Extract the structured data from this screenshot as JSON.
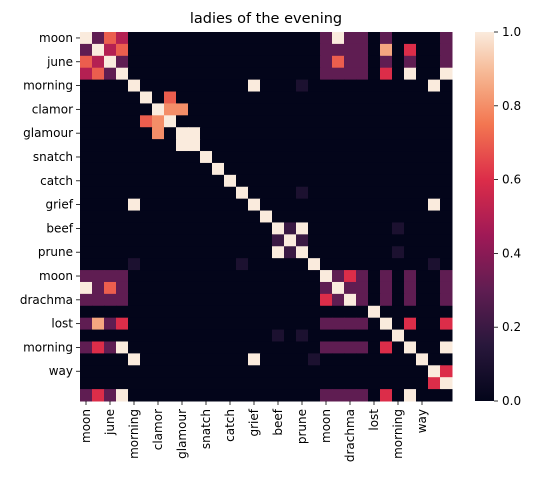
{
  "chart_data": {
    "type": "heatmap",
    "title": "ladies of the evening",
    "row_tick_labels": [
      "moon",
      "june",
      "morning",
      "clamor",
      "glamour",
      "snatch",
      "catch",
      "grief",
      "beef",
      "prune",
      "moon",
      "drachma",
      "lost",
      "morning",
      "way"
    ],
    "col_tick_labels": [
      "moon",
      "june",
      "morning",
      "clamor",
      "glamour",
      "snatch",
      "catch",
      "grief",
      "beef",
      "prune",
      "moon",
      "drachma",
      "lost",
      "morning",
      "way"
    ],
    "colorbar_ticks": [
      "0.0",
      "0.2",
      "0.4",
      "0.6",
      "0.8",
      "1.0"
    ],
    "vmin": 0,
    "vmax": 1,
    "colormap": "rocket",
    "matrix": [
      [
        1.0,
        0.3,
        0.7,
        0.5,
        0,
        0,
        0,
        0,
        0,
        0,
        0,
        0,
        0,
        0,
        0,
        0,
        0,
        0,
        0,
        0,
        0.3,
        1.0,
        0.3,
        0.3,
        0,
        0.3,
        0,
        0,
        0,
        0,
        0.3,
        0
      ],
      [
        0.3,
        1.0,
        0.5,
        0.7,
        0,
        0,
        0,
        0,
        0,
        0,
        0,
        0,
        0,
        0,
        0,
        0,
        0,
        0,
        0,
        0,
        0.3,
        0.3,
        0.3,
        0.3,
        0,
        0.85,
        0,
        0.6,
        0,
        0,
        0.3,
        0
      ],
      [
        0.7,
        0.5,
        1.0,
        0.3,
        0,
        0,
        0,
        0,
        0,
        0,
        0,
        0,
        0,
        0,
        0,
        0,
        0,
        0,
        0,
        0,
        0.3,
        0.7,
        0.3,
        0.3,
        0,
        0.3,
        0,
        0.3,
        0,
        0,
        0.3,
        0
      ],
      [
        0.5,
        0.7,
        0.3,
        1.0,
        0,
        0,
        0,
        0,
        0,
        0,
        0,
        0,
        0,
        0,
        0,
        0,
        0,
        0,
        0,
        0,
        0.3,
        0.3,
        0.3,
        0.3,
        0,
        0.6,
        0,
        1.0,
        0,
        0,
        1.0,
        0
      ],
      [
        0,
        0,
        0,
        0,
        1.0,
        0,
        0,
        0,
        0,
        0,
        0,
        0,
        0,
        0,
        1.0,
        0,
        0,
        0,
        0.1,
        0,
        0,
        0,
        0,
        0,
        0,
        0,
        0,
        0,
        0,
        1.0,
        0,
        0
      ],
      [
        0,
        0,
        0,
        0,
        0,
        1.0,
        0,
        0.7,
        0,
        0,
        0,
        0,
        0,
        0,
        0,
        0,
        0,
        0,
        0,
        0,
        0,
        0,
        0,
        0,
        0,
        0,
        0,
        0,
        0,
        0,
        0,
        0
      ],
      [
        0,
        0,
        0,
        0,
        0,
        0,
        1.0,
        0.8,
        0.8,
        0,
        0,
        0,
        0,
        0,
        0,
        0,
        0,
        0,
        0,
        0,
        0,
        0,
        0,
        0,
        0,
        0,
        0,
        0,
        0,
        0,
        0,
        0
      ],
      [
        0,
        0,
        0,
        0,
        0,
        0.7,
        0.8,
        1.0,
        0,
        0,
        0,
        0,
        0,
        0,
        0,
        0,
        0,
        0,
        0,
        0,
        0,
        0,
        0,
        0,
        0,
        0,
        0,
        0,
        0,
        0,
        0,
        0
      ],
      [
        0,
        0,
        0,
        0,
        0,
        0,
        0.8,
        0,
        1.0,
        1.0,
        0,
        0,
        0,
        0,
        0,
        0,
        0,
        0,
        0,
        0,
        0,
        0,
        0,
        0,
        0,
        0,
        0,
        0,
        0,
        0,
        0,
        0
      ],
      [
        0,
        0,
        0,
        0,
        0,
        0,
        0,
        0,
        1.0,
        1.0,
        0,
        0,
        0,
        0,
        0,
        0,
        0,
        0,
        0,
        0,
        0,
        0,
        0,
        0,
        0,
        0,
        0,
        0,
        0,
        0,
        0,
        0
      ],
      [
        0,
        0,
        0,
        0,
        0,
        0,
        0,
        0,
        0,
        0,
        1.0,
        0,
        0,
        0,
        0,
        0,
        0,
        0,
        0,
        0,
        0,
        0,
        0,
        0,
        0,
        0,
        0,
        0,
        0,
        0,
        0,
        0
      ],
      [
        0,
        0,
        0,
        0,
        0,
        0,
        0,
        0,
        0,
        0,
        0,
        1.0,
        0,
        0,
        0,
        0,
        0,
        0,
        0,
        0,
        0,
        0,
        0,
        0,
        0,
        0,
        0,
        0,
        0,
        0,
        0,
        0
      ],
      [
        0,
        0,
        0,
        0,
        0,
        0,
        0,
        0,
        0,
        0,
        0,
        0,
        1.0,
        0,
        0,
        0,
        0,
        0,
        0,
        0,
        0,
        0,
        0,
        0,
        0,
        0,
        0,
        0,
        0,
        0,
        0,
        0
      ],
      [
        0,
        0,
        0,
        0,
        0,
        0,
        0,
        0,
        0,
        0,
        0,
        0,
        0,
        1.0,
        0,
        0,
        0,
        0,
        0.1,
        0,
        0,
        0,
        0,
        0,
        0,
        0,
        0,
        0,
        0,
        0,
        0,
        0
      ],
      [
        0,
        0,
        0,
        0,
        1.0,
        0,
        0,
        0,
        0,
        0,
        0,
        0,
        0,
        0,
        1.0,
        0,
        0,
        0,
        0,
        0,
        0,
        0,
        0,
        0,
        0,
        0,
        0,
        0,
        0,
        1.0,
        0,
        0
      ],
      [
        0,
        0,
        0,
        0,
        0,
        0,
        0,
        0,
        0,
        0,
        0,
        0,
        0,
        0,
        0,
        1.0,
        0,
        0,
        0,
        0,
        0,
        0,
        0,
        0,
        0,
        0,
        0,
        0,
        0,
        0,
        0,
        0
      ],
      [
        0,
        0,
        0,
        0,
        0,
        0,
        0,
        0,
        0,
        0,
        0,
        0,
        0,
        0,
        0,
        0,
        1.0,
        0.2,
        1.0,
        0,
        0,
        0,
        0,
        0,
        0,
        0,
        0.1,
        0,
        0,
        0,
        0,
        0
      ],
      [
        0,
        0,
        0,
        0,
        0,
        0,
        0,
        0,
        0,
        0,
        0,
        0,
        0,
        0,
        0,
        0,
        0.2,
        1.0,
        0.2,
        0,
        0,
        0,
        0,
        0,
        0,
        0,
        0,
        0,
        0,
        0,
        0,
        0
      ],
      [
        0,
        0,
        0,
        0,
        0,
        0,
        0,
        0,
        0,
        0,
        0,
        0,
        0,
        0,
        0,
        0,
        1.0,
        0.2,
        1.0,
        0,
        0,
        0,
        0,
        0,
        0,
        0,
        0.1,
        0,
        0,
        0,
        0,
        0
      ],
      [
        0,
        0,
        0,
        0,
        0.1,
        0,
        0,
        0,
        0,
        0,
        0,
        0,
        0,
        0.1,
        0,
        0,
        0,
        0,
        0,
        1.0,
        0,
        0,
        0,
        0,
        0,
        0,
        0,
        0,
        0,
        0.1,
        0,
        0
      ],
      [
        0.3,
        0.3,
        0.3,
        0.3,
        0,
        0,
        0,
        0,
        0,
        0,
        0,
        0,
        0,
        0,
        0,
        0,
        0,
        0,
        0,
        0,
        1.0,
        0.3,
        0.6,
        0.3,
        0,
        0.3,
        0,
        0.3,
        0,
        0,
        0.3,
        0
      ],
      [
        1.0,
        0.3,
        0.7,
        0.3,
        0,
        0,
        0,
        0,
        0,
        0,
        0,
        0,
        0,
        0,
        0,
        0,
        0,
        0,
        0,
        0,
        0.3,
        1.0,
        0.3,
        0.3,
        0,
        0.3,
        0,
        0.3,
        0,
        0,
        0.3,
        0
      ],
      [
        0.3,
        0.3,
        0.3,
        0.3,
        0,
        0,
        0,
        0,
        0,
        0,
        0,
        0,
        0,
        0,
        0,
        0,
        0,
        0,
        0,
        0,
        0.6,
        0.3,
        1.0,
        0.3,
        0,
        0.3,
        0,
        0.3,
        0,
        0,
        0.3,
        0
      ],
      [
        0,
        0,
        0,
        0,
        0,
        0,
        0,
        0,
        0,
        0,
        0,
        0,
        0,
        0,
        0,
        0,
        0,
        0,
        0,
        0,
        0,
        0,
        0,
        0,
        1.0,
        0,
        0,
        0,
        0,
        0,
        0,
        0
      ],
      [
        0.3,
        0.85,
        0.3,
        0.6,
        0,
        0,
        0,
        0,
        0,
        0,
        0,
        0,
        0,
        0,
        0,
        0,
        0,
        0,
        0,
        0,
        0.3,
        0.3,
        0.3,
        0.3,
        0,
        1.0,
        0,
        0.6,
        0,
        0,
        0.6,
        0
      ],
      [
        0,
        0,
        0,
        0,
        0,
        0,
        0,
        0,
        0,
        0,
        0,
        0,
        0,
        0,
        0,
        0,
        0.1,
        0,
        0.1,
        0,
        0,
        0,
        0,
        0,
        0,
        0,
        1.0,
        0,
        0,
        0,
        0,
        0
      ],
      [
        0.3,
        0.6,
        0.3,
        1.0,
        0,
        0,
        0,
        0,
        0,
        0,
        0,
        0,
        0,
        0,
        0,
        0,
        0,
        0,
        0,
        0,
        0.3,
        0.3,
        0.3,
        0.3,
        0,
        0.6,
        0,
        1.0,
        0,
        0,
        1.0,
        0
      ],
      [
        0,
        0,
        0,
        0,
        1.0,
        0,
        0,
        0,
        0,
        0,
        0,
        0,
        0,
        0,
        1.0,
        0,
        0,
        0,
        0,
        0.1,
        0,
        0,
        0,
        0,
        0,
        0,
        0,
        0,
        1.0,
        0,
        0,
        0
      ],
      [
        0,
        0,
        0,
        0,
        0,
        0,
        0,
        0,
        0,
        0,
        0,
        0,
        0,
        0,
        0,
        0,
        0,
        0,
        0,
        0,
        0,
        0,
        0,
        0,
        0,
        0,
        0,
        0,
        0,
        1.0,
        0.6,
        0
      ],
      [
        0,
        0,
        0,
        0,
        0,
        0,
        0,
        0,
        0,
        0,
        0,
        0,
        0,
        0,
        0,
        0,
        0,
        0,
        0,
        0,
        0,
        0,
        0,
        0,
        0,
        0,
        0,
        0,
        0,
        0.6,
        1.0,
        0
      ],
      [
        0.3,
        0.6,
        0.3,
        1.0,
        0,
        0,
        0,
        0,
        0,
        0,
        0,
        0,
        0,
        0,
        0,
        0,
        0,
        0,
        0,
        0,
        0.3,
        0.3,
        0.3,
        0.3,
        0,
        0.6,
        0,
        1.0,
        0,
        0,
        0,
        1.0
      ]
    ]
  }
}
